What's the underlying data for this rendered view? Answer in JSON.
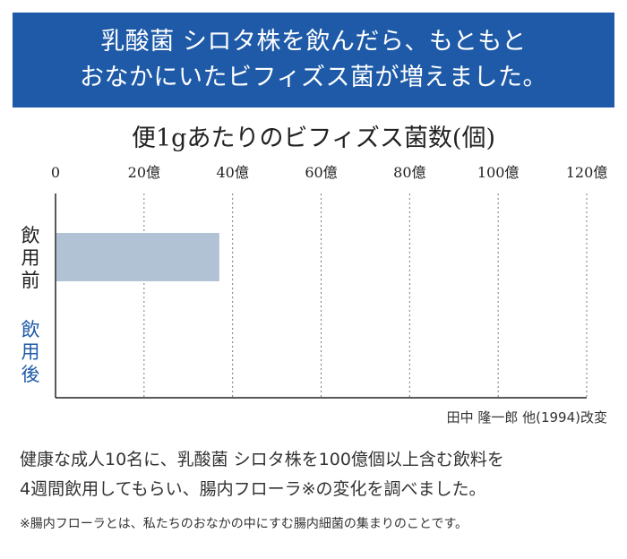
{
  "header": {
    "line1": "乳酸菌 シロタ株を飲んだら、もともと",
    "line2": "おなかにいたビフィズス菌が増えました。"
  },
  "chart_data": {
    "type": "bar",
    "orientation": "horizontal",
    "title": "便1gあたりのビフィズス菌数(個)",
    "xlabel": "",
    "ylabel": "",
    "x_ticks": [
      "0",
      "20億",
      "40億",
      "60億",
      "80億",
      "100億",
      "120億"
    ],
    "xlim": [
      0,
      120
    ],
    "grid": true,
    "categories": [
      "飲用前",
      "飲用後"
    ],
    "values": [
      37,
      null
    ],
    "colors": [
      "#b1c2d4",
      "#1e5aa8"
    ],
    "category_colors": [
      "#222222",
      "#1e5aa8"
    ],
    "unit": "億"
  },
  "source": "田中 隆一郎 他(1994)改変",
  "description": {
    "line1": "健康な成人10名に、乳酸菌 シロタ株を100億個以上含む飲料を",
    "line2": "4週間飲用してもらい、腸内フローラ※の変化を調べました。"
  },
  "note": "※腸内フローラとは、私たちのおなかの中にすむ腸内細菌の集まりのことです。"
}
